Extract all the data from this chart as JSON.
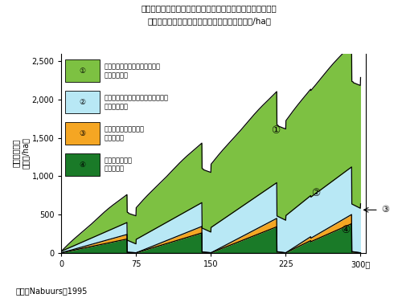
{
  "title_line1": "ヨーロッパでのノルウェイトウヒの造林によって達成される",
  "title_line2": "ＣＯ２の吸収と排出量の削減（累積ＣＯ２トン/ha）",
  "ylabel": "ＣＯ２削減量\n（トン/ha）",
  "source": "出典：Nabuurs．1995",
  "xticks": [
    0,
    75,
    150,
    225,
    300
  ],
  "yticks": [
    0,
    500,
    1000,
    1500,
    2000,
    2500
  ],
  "xlim": [
    0,
    300
  ],
  "ylim": [
    0,
    2500
  ],
  "color1": "#7dc142",
  "color2": "#b8e8f5",
  "color3": "#f5a623",
  "color4": "#1a7a28",
  "legend_labels": [
    "化石燃料を代替することによる\nＣＯ２の削減",
    "非木質系原料を代替することによる\nＣＯ２の削減",
    "木材木製品が保持する\nＣＯ２の量",
    "森林が保持する\nＣＯ２の量"
  ],
  "legend_nums": [
    "①",
    "②",
    "③",
    "④"
  ]
}
